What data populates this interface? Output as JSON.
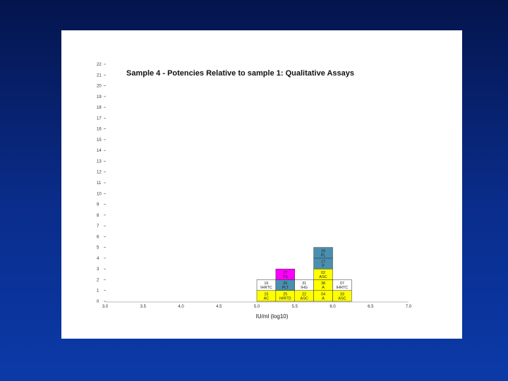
{
  "chart_data": {
    "type": "bar",
    "title": "Sample 4 - Potencies Relative to sample 1: Qualitative Assays",
    "xlabel": "IU/ml (log10)",
    "ylabel": "",
    "xlim": [
      3.0,
      7.0
    ],
    "ylim": [
      0,
      22
    ],
    "x_ticks": [
      "3.0",
      "3.5",
      "4.0",
      "4.5",
      "5.0",
      "5.5",
      "6.0",
      "6.5",
      "7.0"
    ],
    "y_ticks": [
      "0",
      "1",
      "2",
      "3",
      "4",
      "5",
      "6",
      "7",
      "8",
      "9",
      "10",
      "11",
      "12",
      "13",
      "14",
      "15",
      "16",
      "17",
      "18",
      "19",
      "20",
      "21",
      "22"
    ],
    "bin_width": 0.25,
    "grid": false,
    "colors": {
      "yellow": "#ffff00",
      "blue": "#4a8fb0",
      "magenta": "#ff00ff",
      "white": "#ffffff"
    },
    "columns": [
      {
        "x": 5.125,
        "cells": [
          {
            "label": "15 AC",
            "color": "yellow"
          },
          {
            "label": "16 IHRTC",
            "color": "white"
          }
        ]
      },
      {
        "x": 5.375,
        "cells": [
          {
            "label": "25 IHRTD",
            "color": "yellow"
          },
          {
            "label": "26 PLT",
            "color": "blue"
          },
          {
            "label": "27 TS",
            "color": "magenta"
          }
        ]
      },
      {
        "x": 5.625,
        "cells": [
          {
            "label": "22 ASC",
            "color": "yellow"
          },
          {
            "label": "31 IHG",
            "color": "white"
          }
        ]
      },
      {
        "x": 5.875,
        "cells": [
          {
            "label": "04 A",
            "color": "yellow"
          },
          {
            "label": "38 A",
            "color": "yellow"
          },
          {
            "label": "02 ASC",
            "color": "yellow"
          },
          {
            "label": "17 P",
            "color": "blue"
          },
          {
            "label": "29 PL",
            "color": "blue"
          }
        ]
      },
      {
        "x": 6.125,
        "cells": [
          {
            "label": "33 ASC",
            "color": "yellow"
          },
          {
            "label": "07 IHRTC",
            "color": "white"
          }
        ]
      }
    ]
  }
}
